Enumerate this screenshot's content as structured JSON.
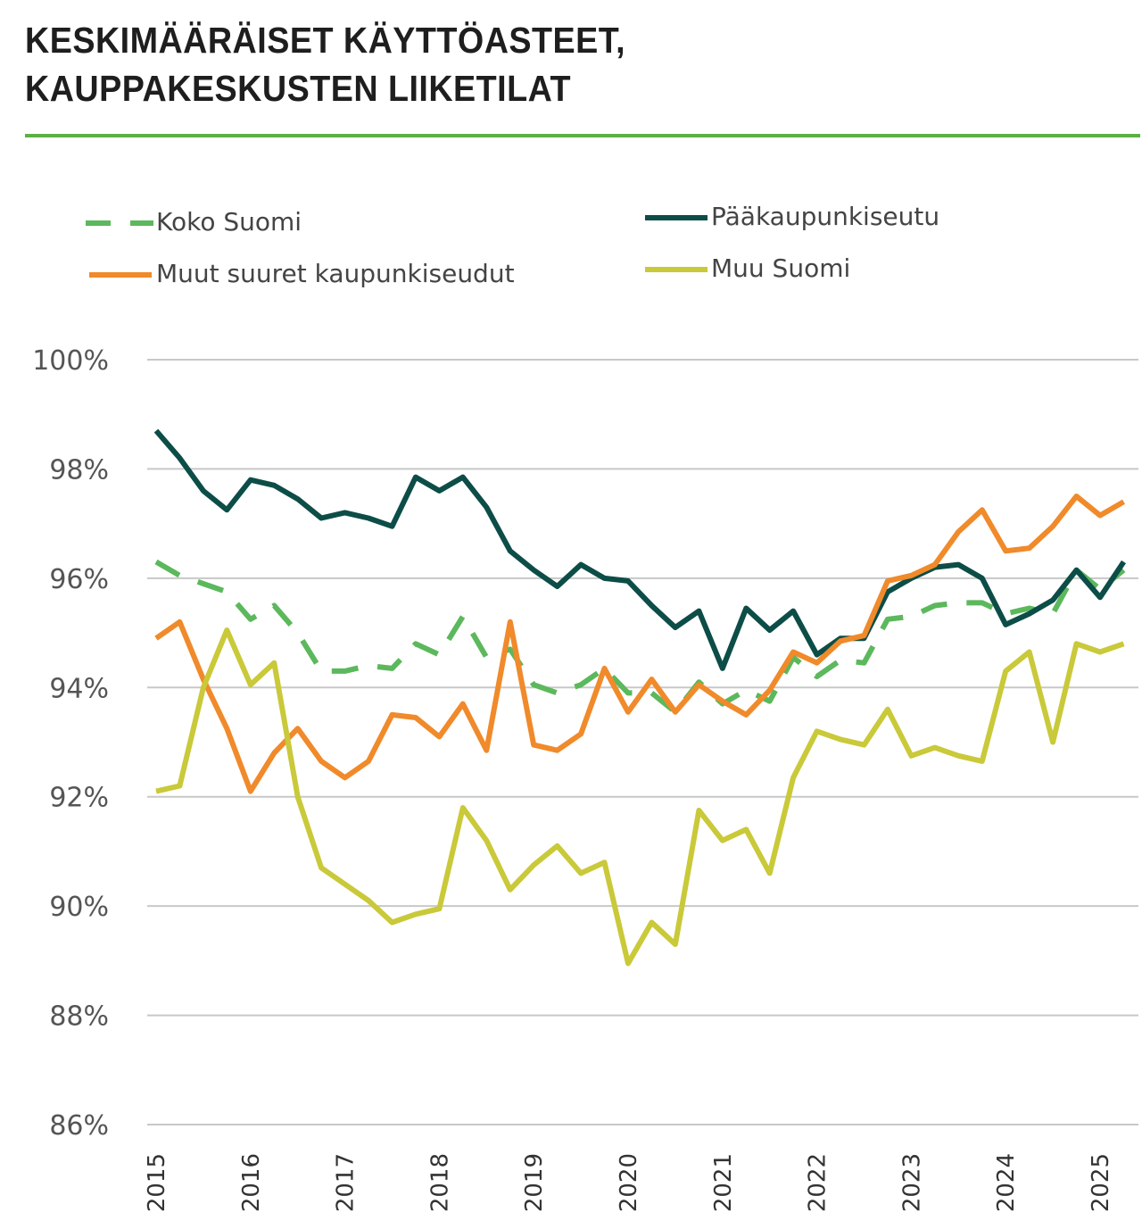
{
  "chart_data": {
    "type": "line",
    "title": "KESKIMÄÄRÄISET KÄYTTÖASTEET,\nKAUPPAKESKUSTEN LIIKETILAT",
    "title_lines": [
      "KESKIMÄÄRÄISET KÄYTTÖASTEET,",
      "KAUPPAKESKUSTEN LIIKETILAT"
    ],
    "xlabel": "",
    "ylabel": "",
    "x_ticks": [
      "2015",
      "2016",
      "2017",
      "2018",
      "2019",
      "2020",
      "2021",
      "2022",
      "2023",
      "2024",
      "2025"
    ],
    "y_ticks": [
      "100%",
      "98%",
      "96%",
      "94%",
      "92%",
      "90%",
      "88%",
      "86%"
    ],
    "ylim": [
      86,
      100
    ],
    "x_start": "2015 Q1",
    "x_frequency": "quarterly",
    "grid": "horizontal",
    "legend_placement": "top",
    "series": [
      {
        "name": "Koko Suomi",
        "color": "#5cb85c",
        "style": "dashed",
        "values": [
          96.3,
          96.05,
          95.9,
          95.75,
          95.25,
          95.5,
          95.0,
          94.3,
          94.3,
          94.4,
          94.35,
          94.8,
          94.6,
          95.3,
          94.55,
          94.7,
          94.05,
          93.9,
          94.05,
          94.35,
          93.9,
          93.9,
          93.55,
          94.1,
          93.7,
          93.95,
          93.75,
          94.55,
          94.2,
          94.5,
          94.45,
          95.25,
          95.3,
          95.5,
          95.55,
          95.55,
          95.35,
          95.45,
          95.35,
          96.15,
          95.8,
          96.15
        ]
      },
      {
        "name": "Pääkaupunkiseutu",
        "color": "#0d4d47",
        "style": "solid",
        "values": [
          98.7,
          98.2,
          97.6,
          97.25,
          97.8,
          97.7,
          97.45,
          97.1,
          97.2,
          97.1,
          96.95,
          97.85,
          97.6,
          97.85,
          97.3,
          96.5,
          96.15,
          95.85,
          96.25,
          96.0,
          95.95,
          95.5,
          95.1,
          95.4,
          94.35,
          95.45,
          95.05,
          95.4,
          94.6,
          94.9,
          94.9,
          95.75,
          96.0,
          96.2,
          96.25,
          96.0,
          95.15,
          95.35,
          95.6,
          96.15,
          95.65,
          96.3
        ]
      },
      {
        "name": "Muut suuret kaupunkiseudut",
        "color": "#f08a2a",
        "style": "solid",
        "values": [
          94.9,
          95.2,
          94.15,
          93.25,
          92.1,
          92.8,
          93.25,
          92.65,
          92.35,
          92.65,
          93.5,
          93.45,
          93.1,
          93.7,
          92.85,
          95.2,
          92.95,
          92.85,
          93.15,
          94.35,
          93.55,
          94.15,
          93.55,
          94.05,
          93.75,
          93.5,
          93.95,
          94.65,
          94.45,
          94.85,
          94.95,
          95.95,
          96.05,
          96.25,
          96.85,
          97.25,
          96.5,
          96.55,
          96.95,
          97.5,
          97.15,
          97.4
        ]
      },
      {
        "name": "Muu Suomi",
        "color": "#c9c93a",
        "style": "solid",
        "values": [
          92.1,
          92.2,
          94.0,
          95.05,
          94.05,
          94.45,
          92.0,
          90.7,
          90.4,
          90.1,
          89.7,
          89.85,
          89.95,
          91.8,
          91.2,
          90.3,
          90.75,
          91.1,
          90.6,
          90.8,
          88.95,
          89.7,
          89.3,
          91.75,
          91.2,
          91.4,
          90.6,
          92.35,
          93.2,
          93.05,
          92.95,
          93.6,
          92.75,
          92.9,
          92.75,
          92.65,
          94.3,
          94.65,
          93.0,
          94.8,
          94.65,
          94.8
        ]
      }
    ]
  }
}
